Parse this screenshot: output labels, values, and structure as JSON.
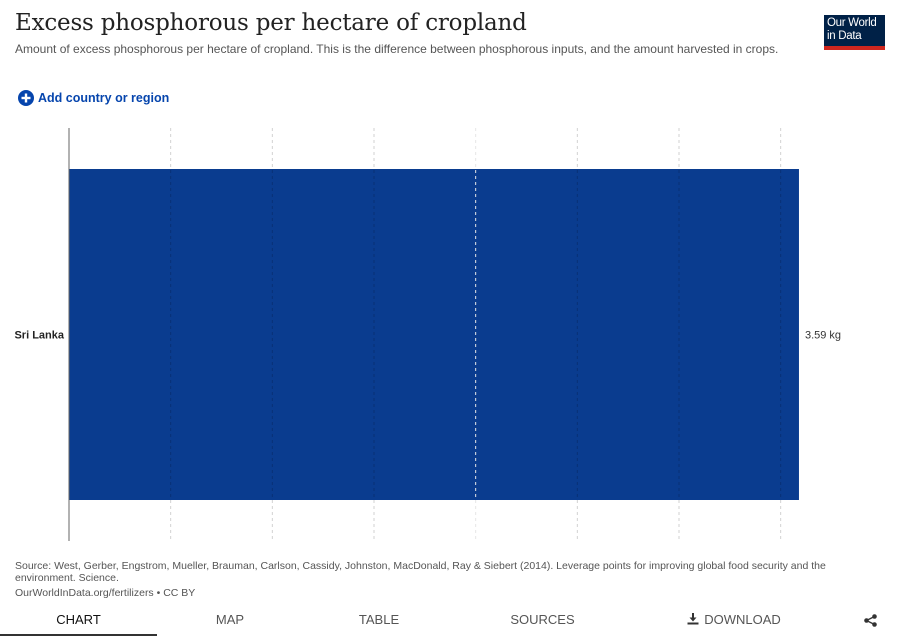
{
  "header": {
    "title": "Excess phosphorous per hectare of cropland",
    "subtitle": "Amount of excess phosphorous per hectare of cropland. This is the difference between phosphorous inputs, and the amount harvested in crops.",
    "logo_line1": "Our World",
    "logo_line2": "in Data"
  },
  "controls": {
    "add_label": "Add country or region"
  },
  "chart_data": {
    "type": "bar",
    "orientation": "horizontal",
    "categories": [
      "Sri Lanka"
    ],
    "values": [
      3.59
    ],
    "value_labels": [
      "3.59 kg"
    ],
    "unit": "kg",
    "xlim": [
      0,
      4.2
    ],
    "grid": true,
    "bar_color": "#0a3c8f"
  },
  "footer": {
    "source": "Source: West, Gerber, Engstrom, Mueller, Brauman, Carlson, Cassidy, Johnston, MacDonald, Ray & Siebert (2014). Leverage points for improving global food security and the environment. Science.",
    "url": "OurWorldInData.org/fertilizers • CC BY"
  },
  "tabs": {
    "chart": "CHART",
    "map": "MAP",
    "table": "TABLE",
    "sources": "SOURCES",
    "download": "DOWNLOAD"
  },
  "icons": {
    "add": "plus-circle-icon",
    "download": "download-icon",
    "share": "share-icon"
  }
}
